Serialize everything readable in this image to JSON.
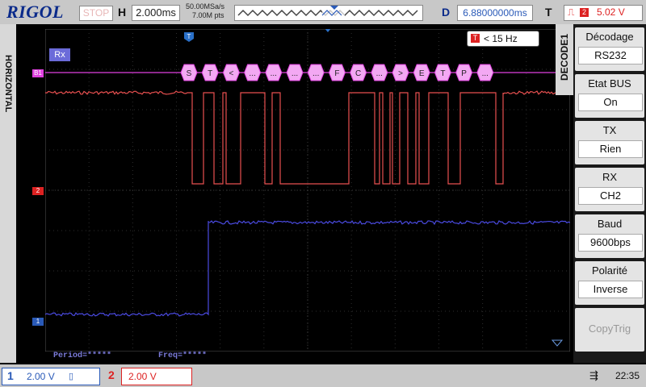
{
  "top": {
    "brand": "RIGOL",
    "run_state": "STOP",
    "h_label": "H",
    "timebase": "2.000ms",
    "sample_rate": "50.00MSa/s",
    "memory_depth": "7.00M pts",
    "d_label": "D",
    "delay": "6.88000000ms",
    "t_label": "T",
    "trigger_source": "2",
    "trigger_level": "5.02 V"
  },
  "screen": {
    "horizontal_tab": "HORIZONTAL",
    "bus_label": "Rx",
    "bus_marker": "B1",
    "ch2_marker": "2",
    "ch1_marker": "1",
    "freq_limit": "< 15 Hz",
    "decoded_bytes": [
      "S",
      "T",
      "<",
      "...",
      "...",
      "...",
      "...",
      "F",
      "C",
      "...",
      ">",
      "E",
      "T",
      "P",
      "..."
    ],
    "period_text": "Period=*****",
    "freq_text": "Freq=*****"
  },
  "menu": {
    "title": "DECODE1",
    "items": [
      {
        "label": "Décodage",
        "value": "RS232"
      },
      {
        "label": "Etat BUS",
        "value": "On"
      },
      {
        "label": "TX",
        "value": "Rien"
      },
      {
        "label": "RX",
        "value": "CH2"
      },
      {
        "label": "Baud",
        "value": "9600bps"
      },
      {
        "label": "Polarité",
        "value": "Inverse"
      },
      {
        "label": "CopyTrig",
        "value": ""
      }
    ]
  },
  "bottom": {
    "ch1_number": "1",
    "ch1_scale": "2.00 V",
    "ch2_number": "2",
    "ch2_scale": "2.00 V",
    "time": "22:35"
  },
  "colors": {
    "ch1": "#4a4ae0",
    "ch2": "#e85050",
    "bus": "#e040e0",
    "bus_fill": "#f3a8f3"
  }
}
